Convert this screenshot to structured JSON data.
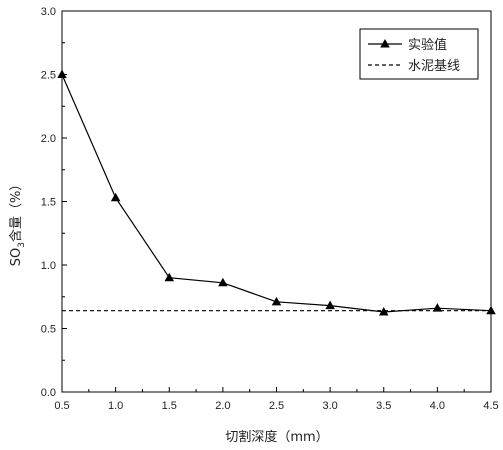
{
  "chart_data": {
    "type": "line",
    "title": "",
    "xlabel": "切割深度（mm）",
    "ylabel": {
      "prefix": "SO",
      "sub": "3",
      "suffix": "含量（%）"
    },
    "xlim": [
      0.5,
      4.5
    ],
    "ylim": [
      0,
      3.0
    ],
    "xticks": [
      "0.5",
      "1.0",
      "1.5",
      "2.0",
      "2.5",
      "3.0",
      "3.5",
      "4.0",
      "4.5"
    ],
    "yticks": [
      "0.0",
      "0.5",
      "1.0",
      "1.5",
      "2.0",
      "2.5",
      "3.0"
    ],
    "grid": false,
    "legend_position": "top-right",
    "series": [
      {
        "name": "实验值",
        "style": "solid-triangle-markers",
        "color": "#000000",
        "x": [
          0.5,
          1.0,
          1.5,
          2.0,
          2.5,
          3.0,
          3.5,
          4.0,
          4.5
        ],
        "y": [
          2.5,
          1.53,
          0.9,
          0.86,
          0.71,
          0.68,
          0.63,
          0.66,
          0.64
        ]
      },
      {
        "name": "水泥基线",
        "style": "dashed",
        "color": "#000000",
        "x": [
          0.5,
          4.5
        ],
        "y": [
          0.64,
          0.64
        ]
      }
    ]
  }
}
